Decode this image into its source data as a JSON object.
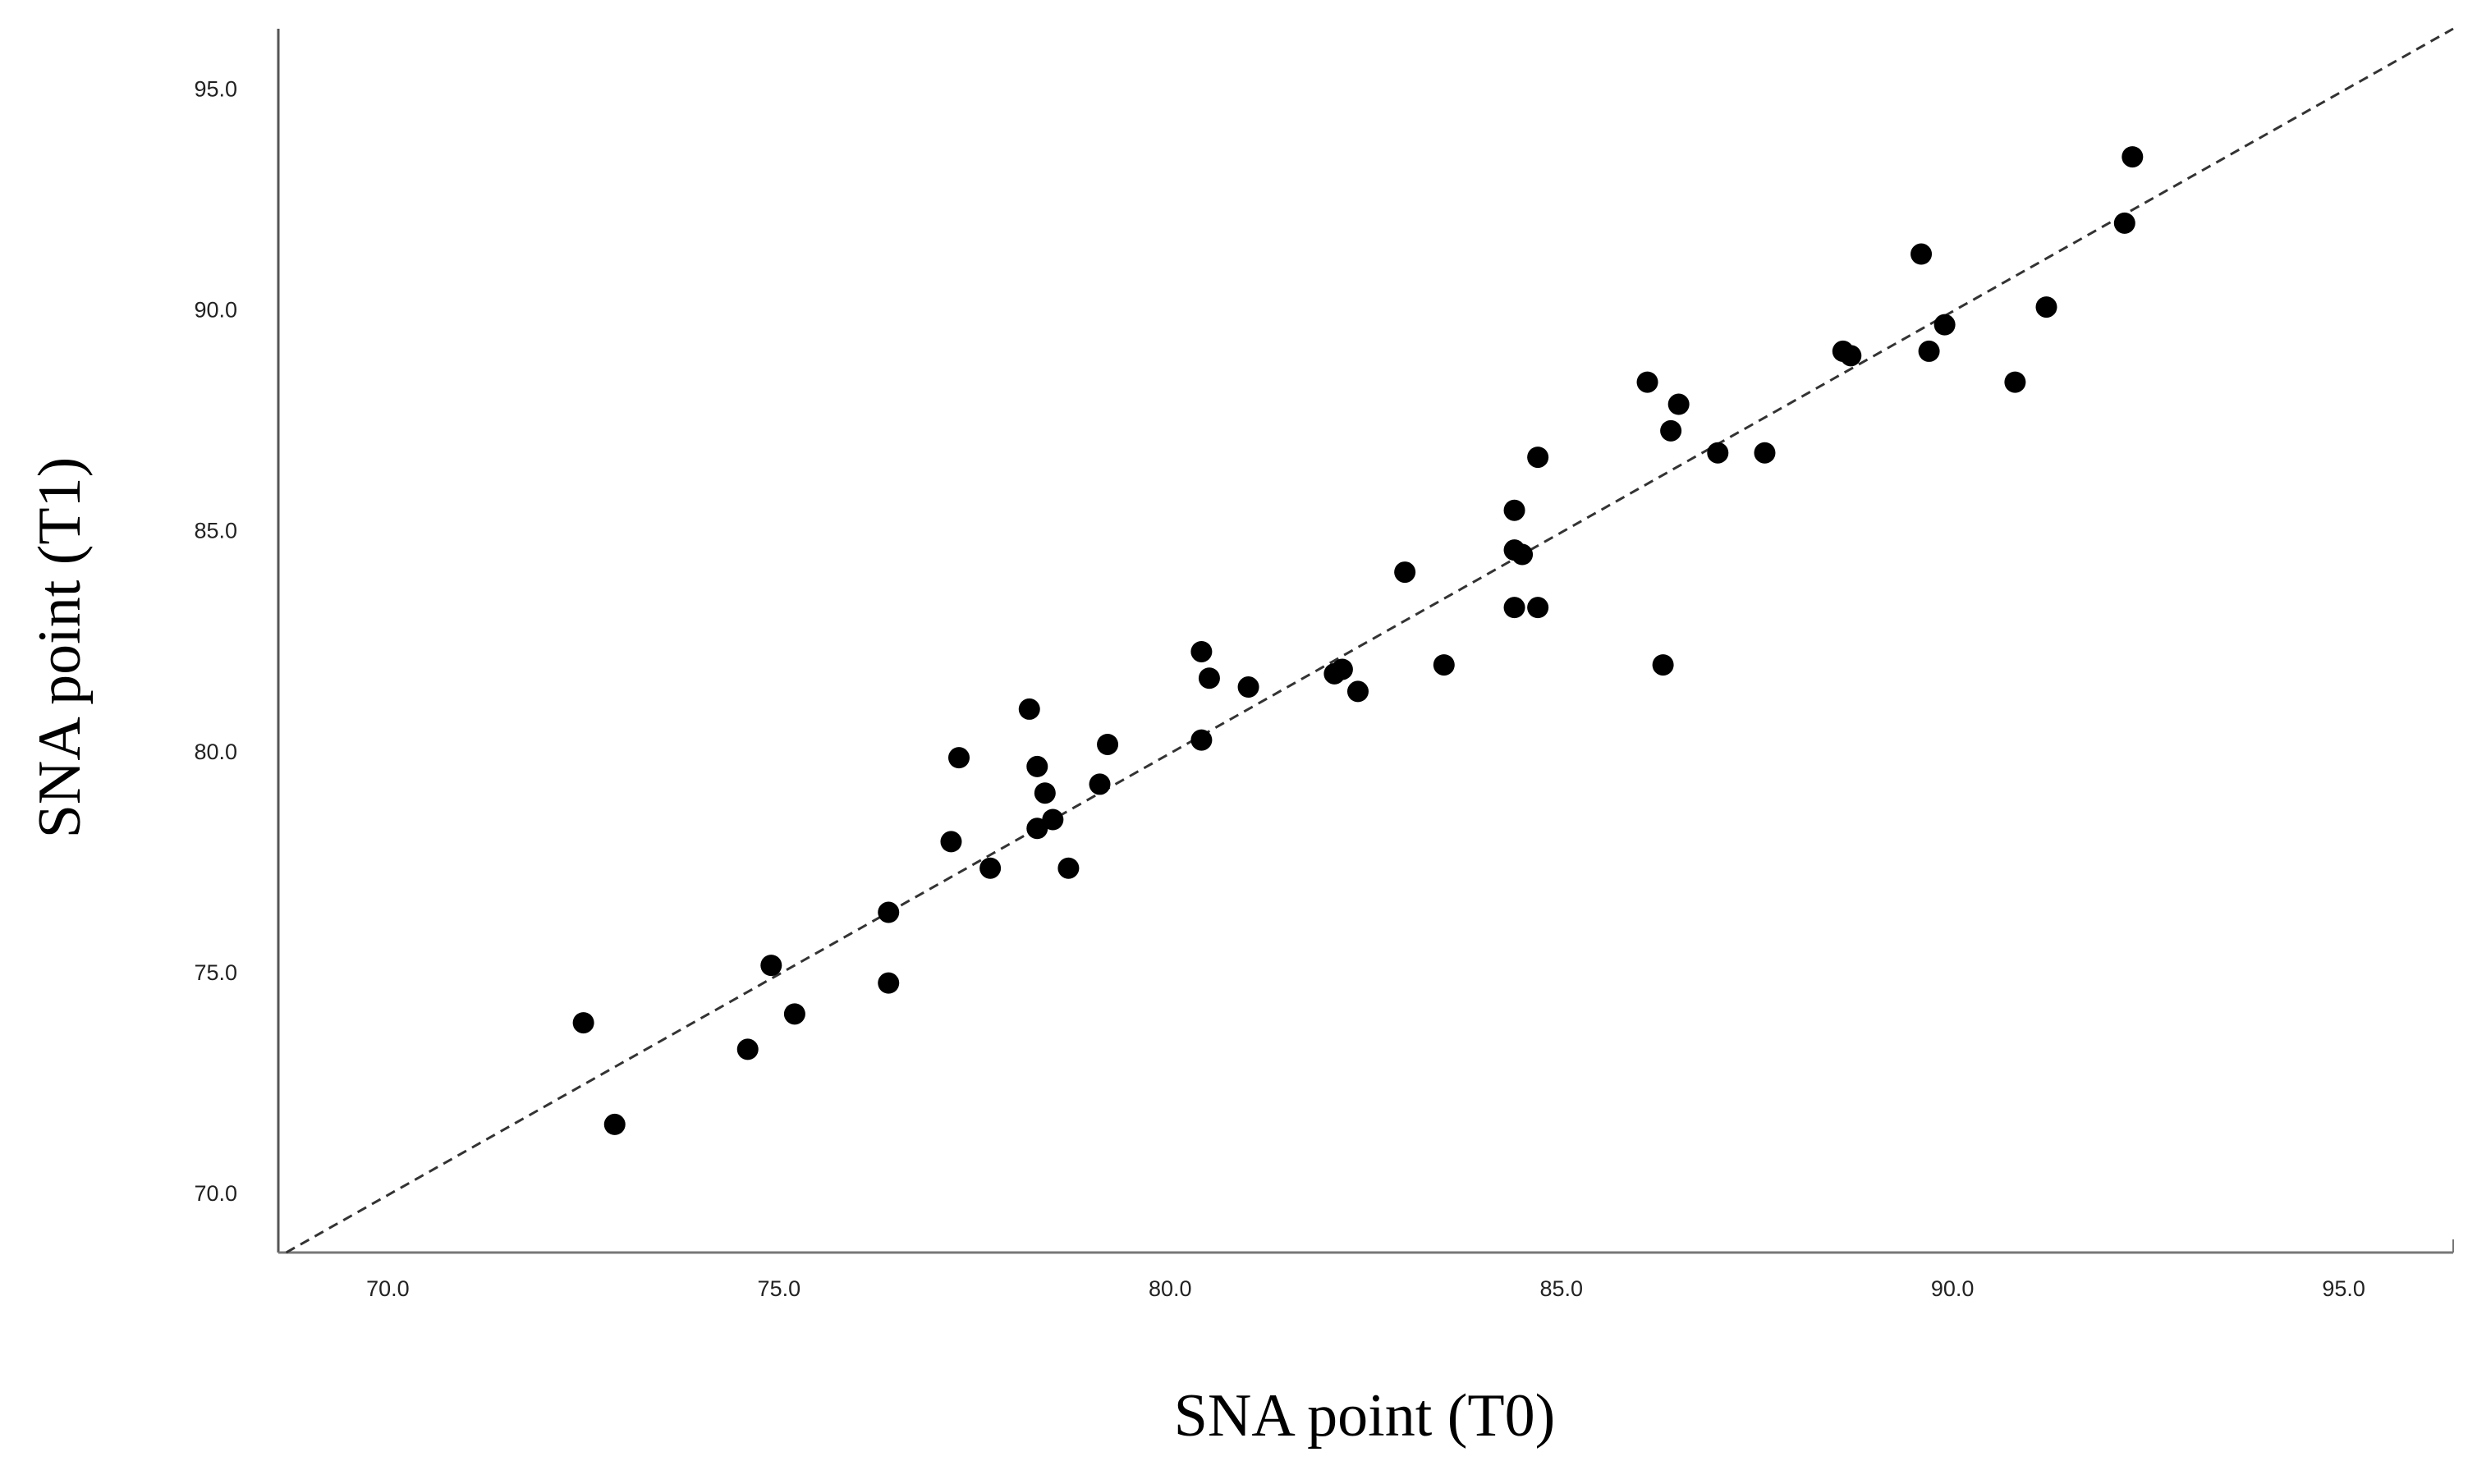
{
  "chart_data": {
    "type": "scatter",
    "x_label": "SNA point (T0)",
    "y_label": "SNA point (T1)",
    "series": [
      {
        "name": "SNA",
        "color": "#000000",
        "x": [
          72.5,
          72.9,
          74.6,
          74.9,
          75.2,
          76.4,
          76.4,
          77.2,
          77.3,
          77.7,
          78.2,
          78.3,
          78.4,
          78.3,
          78.5,
          78.7,
          79.1,
          79.2,
          80.4,
          80.5,
          80.4,
          81.0,
          82.1,
          82.2,
          82.4,
          83.0,
          83.5,
          84.4,
          84.4,
          84.5,
          84.4,
          84.7,
          84.7,
          86.1,
          86.5,
          86.4,
          86.3,
          87.0,
          87.6,
          88.6,
          88.7,
          89.6,
          89.7,
          89.9,
          90.8,
          91.2,
          92.2,
          92.3
        ],
        "values": [
          73.9,
          71.6,
          73.3,
          75.2,
          74.1,
          76.4,
          74.8,
          78.0,
          79.9,
          77.4,
          81.0,
          79.7,
          79.1,
          78.3,
          78.5,
          77.4,
          79.3,
          80.2,
          82.3,
          81.7,
          80.3,
          81.5,
          81.8,
          81.9,
          81.4,
          84.1,
          82.0,
          85.5,
          84.6,
          84.5,
          83.3,
          83.3,
          86.7,
          88.4,
          87.9,
          87.3,
          82.0,
          86.8,
          86.8,
          89.1,
          89.0,
          91.3,
          89.1,
          89.7,
          88.4,
          90.1,
          92.0,
          93.5
        ]
      }
    ],
    "xlim": [
      68.6,
      96.4
    ],
    "ylim": [
      68.7,
      96.4
    ],
    "xticks": [
      {
        "value": 70,
        "label": "70.0"
      },
      {
        "value": 75,
        "label": "75.0"
      },
      {
        "value": 80,
        "label": "80.0"
      },
      {
        "value": 85,
        "label": "85.0"
      },
      {
        "value": 90,
        "label": "90.0"
      },
      {
        "value": 95,
        "label": "95.0"
      }
    ],
    "yticks": [
      {
        "value": 70,
        "label": "70.0"
      },
      {
        "value": 75,
        "label": "75.0"
      },
      {
        "value": 80,
        "label": "80.0"
      },
      {
        "value": 85,
        "label": "85.0"
      },
      {
        "value": 90,
        "label": "90.0"
      },
      {
        "value": 95,
        "label": "95.0"
      }
    ]
  }
}
